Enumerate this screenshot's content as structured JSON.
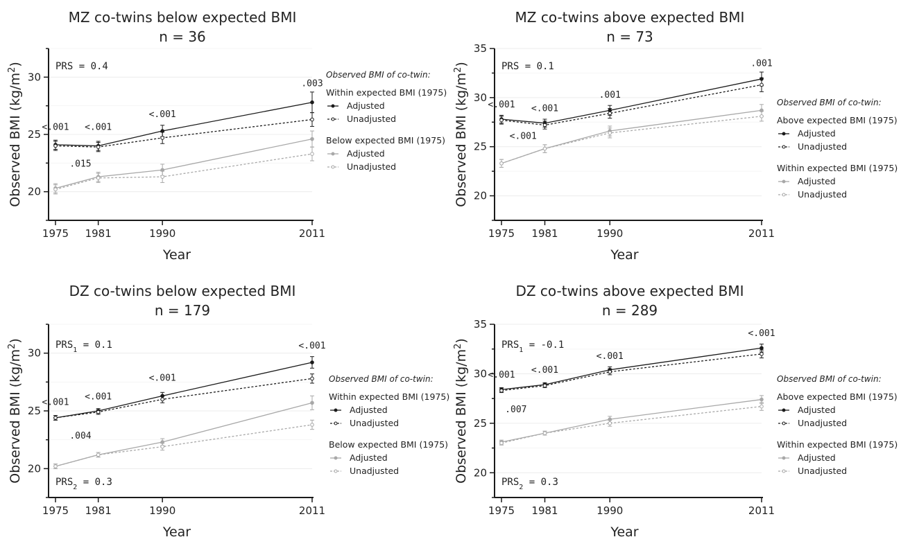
{
  "chart_data": [
    {
      "type": "line",
      "title": "MZ co-twins below expected BMI",
      "subtitle": "n = 36",
      "xlabel": "Year",
      "ylabel": "Observed BMI  (kg/m2)",
      "x": [
        1975,
        1981,
        1990,
        2011
      ],
      "ylim": [
        17.5,
        32.5
      ],
      "yticks": [
        20,
        25,
        30
      ],
      "prs": [
        {
          "label": "PRS = 0.4"
        }
      ],
      "legend": {
        "heading": "Observed BMI of co-twin:",
        "groups": [
          {
            "label": "Within expected BMI (1975)",
            "items": [
              "Adjusted",
              "Unadjusted"
            ]
          },
          {
            "label": "Below expected BMI (1975)",
            "items": [
              "Adjusted",
              "Unadjusted"
            ]
          }
        ]
      },
      "series": [
        {
          "name": "Within expected BMI (1975) Adjusted",
          "shade": "dark",
          "dash": "solid",
          "values": [
            24.1,
            24.0,
            25.3,
            27.8
          ],
          "err": [
            0.4,
            0.4,
            0.5,
            0.9
          ]
        },
        {
          "name": "Within expected BMI (1975) Unadjusted",
          "shade": "dark",
          "dash": "dashed",
          "values": [
            24.0,
            23.9,
            24.7,
            26.3
          ],
          "err": [
            0.4,
            0.4,
            0.5,
            0.6
          ]
        },
        {
          "name": "Below expected BMI (1975) Adjusted",
          "shade": "light",
          "dash": "solid",
          "values": [
            20.3,
            21.3,
            21.9,
            24.6
          ],
          "err": [
            0.4,
            0.4,
            0.5,
            0.7
          ]
        },
        {
          "name": "Below expected BMI (1975) Unadjusted",
          "shade": "light",
          "dash": "dashed",
          "values": [
            20.2,
            21.2,
            21.3,
            23.3
          ],
          "err": [
            0.4,
            0.4,
            0.5,
            0.6
          ]
        }
      ],
      "annotations": [
        {
          "text": "<.001",
          "x": 1975,
          "y": 25.4
        },
        {
          "text": "<.001",
          "x": 1981,
          "y": 25.4
        },
        {
          "text": "<.001",
          "x": 1990,
          "y": 26.5
        },
        {
          "text": ".003",
          "x": 2011,
          "y": 29.2
        },
        {
          "text": ".015",
          "x": 1978.5,
          "y": 22.2
        }
      ]
    },
    {
      "type": "line",
      "title": "MZ co-twins above expected BMI",
      "subtitle": "n = 73",
      "xlabel": "Year",
      "ylabel": "Observed BMI  (kg/m2)",
      "x": [
        1975,
        1981,
        1990,
        2011
      ],
      "ylim": [
        17.5,
        35
      ],
      "yticks": [
        20,
        25,
        30,
        35
      ],
      "prs": [
        {
          "label": "PRS = 0.1"
        }
      ],
      "legend": {
        "heading": "Observed BMI of co-twin:",
        "groups": [
          {
            "label": "Above expected BMI (1975)",
            "items": [
              "Adjusted",
              "Unadjusted"
            ]
          },
          {
            "label": "Within expected BMI (1975)",
            "items": [
              "Adjusted",
              "Unadjusted"
            ]
          }
        ]
      },
      "series": [
        {
          "name": "Above expected BMI (1975) Adjusted",
          "shade": "dark",
          "dash": "solid",
          "values": [
            27.8,
            27.4,
            28.7,
            31.9
          ],
          "err": [
            0.4,
            0.4,
            0.5,
            0.7
          ]
        },
        {
          "name": "Above expected BMI (1975) Unadjusted",
          "shade": "dark",
          "dash": "dashed",
          "values": [
            27.7,
            27.2,
            28.4,
            31.3
          ],
          "err": [
            0.4,
            0.4,
            0.5,
            0.7
          ]
        },
        {
          "name": "Within expected BMI (1975) Adjusted",
          "shade": "light",
          "dash": "solid",
          "values": [
            23.3,
            24.8,
            26.6,
            28.7
          ],
          "err": [
            0.4,
            0.4,
            0.5,
            0.6
          ]
        },
        {
          "name": "Within expected BMI (1975) Unadjusted",
          "shade": "light",
          "dash": "dashed",
          "values": [
            23.3,
            24.8,
            26.4,
            28.1
          ],
          "err": [
            0.4,
            0.4,
            0.5,
            0.5
          ]
        }
      ],
      "annotations": [
        {
          "text": "<.001",
          "x": 1975,
          "y": 29.0
        },
        {
          "text": "<.001",
          "x": 1981,
          "y": 28.6
        },
        {
          "text": ".001",
          "x": 1990,
          "y": 30.0
        },
        {
          "text": ".001",
          "x": 2011,
          "y": 33.2
        },
        {
          "text": "<.001",
          "x": 1978,
          "y": 25.8
        }
      ]
    },
    {
      "type": "line",
      "title": "DZ co-twins below expected BMI",
      "subtitle": "n = 179",
      "xlabel": "Year",
      "ylabel": "Observed BMI  (kg/m2)",
      "x": [
        1975,
        1981,
        1990,
        2011
      ],
      "ylim": [
        17.5,
        32.5
      ],
      "yticks": [
        20,
        25,
        30
      ],
      "prs": [
        {
          "label": "PRS",
          "sub": "1",
          "value": " = 0.1"
        },
        {
          "label": "PRS",
          "sub": "2",
          "value": " = 0.3"
        }
      ],
      "legend": {
        "heading": "Observed BMI of co-twin:",
        "groups": [
          {
            "label": "Within expected BMI (1975)",
            "items": [
              "Adjusted",
              "Unadjusted"
            ]
          },
          {
            "label": "Below expected BMI (1975)",
            "items": [
              "Adjusted",
              "Unadjusted"
            ]
          }
        ]
      },
      "series": [
        {
          "name": "Within expected BMI (1975) Adjusted",
          "shade": "dark",
          "dash": "solid",
          "values": [
            24.4,
            25.0,
            26.3,
            29.2
          ],
          "err": [
            0.2,
            0.2,
            0.3,
            0.5
          ]
        },
        {
          "name": "Within expected BMI (1975) Unadjusted",
          "shade": "dark",
          "dash": "dashed",
          "values": [
            24.4,
            24.9,
            26.0,
            27.8
          ],
          "err": [
            0.2,
            0.2,
            0.3,
            0.4
          ]
        },
        {
          "name": "Below expected BMI (1975) Adjusted",
          "shade": "light",
          "dash": "solid",
          "values": [
            20.2,
            21.2,
            22.3,
            25.7
          ],
          "err": [
            0.2,
            0.2,
            0.3,
            0.6
          ]
        },
        {
          "name": "Below expected BMI (1975) Unadjusted",
          "shade": "light",
          "dash": "dashed",
          "values": [
            20.2,
            21.2,
            21.9,
            23.8
          ],
          "err": [
            0.2,
            0.2,
            0.3,
            0.4
          ]
        }
      ],
      "annotations": [
        {
          "text": "<.001",
          "x": 1975,
          "y": 25.5
        },
        {
          "text": "<.001",
          "x": 1981,
          "y": 26.0
        },
        {
          "text": "<.001",
          "x": 1990,
          "y": 27.6
        },
        {
          "text": "<.001",
          "x": 2011,
          "y": 30.4
        },
        {
          "text": ".004",
          "x": 1978.5,
          "y": 22.6
        }
      ]
    },
    {
      "type": "line",
      "title": "DZ co-twins above expected BMI",
      "subtitle": "n = 289",
      "xlabel": "Year",
      "ylabel": "Observed BMI  (kg/m2)",
      "x": [
        1975,
        1981,
        1990,
        2011
      ],
      "ylim": [
        17.5,
        35
      ],
      "yticks": [
        20,
        25,
        30,
        35
      ],
      "prs": [
        {
          "label": "PRS",
          "sub": "1",
          "value": " = -0.1"
        },
        {
          "label": "PRS",
          "sub": "2",
          "value": " = 0.3"
        }
      ],
      "legend": {
        "heading": "Observed BMI of co-twin:",
        "groups": [
          {
            "label": "Above expected BMI (1975)",
            "items": [
              "Adjusted",
              "Unadjusted"
            ]
          },
          {
            "label": "Within expected BMI (1975)",
            "items": [
              "Adjusted",
              "Unadjusted"
            ]
          }
        ]
      },
      "series": [
        {
          "name": "Above expected BMI (1975) Adjusted",
          "shade": "dark",
          "dash": "solid",
          "values": [
            28.4,
            28.9,
            30.4,
            32.6
          ],
          "err": [
            0.2,
            0.2,
            0.3,
            0.4
          ]
        },
        {
          "name": "Above expected BMI (1975) Unadjusted",
          "shade": "dark",
          "dash": "dashed",
          "values": [
            28.3,
            28.8,
            30.2,
            32.0
          ],
          "err": [
            0.2,
            0.2,
            0.3,
            0.4
          ]
        },
        {
          "name": "Within expected BMI (1975) Adjusted",
          "shade": "light",
          "dash": "solid",
          "values": [
            23.1,
            24.0,
            25.4,
            27.4
          ],
          "err": [
            0.2,
            0.2,
            0.3,
            0.4
          ]
        },
        {
          "name": "Within expected BMI (1975) Unadjusted",
          "shade": "light",
          "dash": "dashed",
          "values": [
            23.0,
            24.0,
            25.0,
            26.7
          ],
          "err": [
            0.2,
            0.2,
            0.3,
            0.4
          ]
        }
      ],
      "annotations": [
        {
          "text": "<.001",
          "x": 1975,
          "y": 29.6
        },
        {
          "text": "<.001",
          "x": 1981,
          "y": 30.1
        },
        {
          "text": "<.001",
          "x": 1990,
          "y": 31.5
        },
        {
          "text": "<.001",
          "x": 2011,
          "y": 33.8
        },
        {
          "text": ".007",
          "x": 1977,
          "y": 26.1
        }
      ]
    }
  ],
  "colors": {
    "dark": "#1a1a1a",
    "light": "#a8a8a8",
    "grid": "#ececec",
    "axis": "#1a1a1a"
  }
}
